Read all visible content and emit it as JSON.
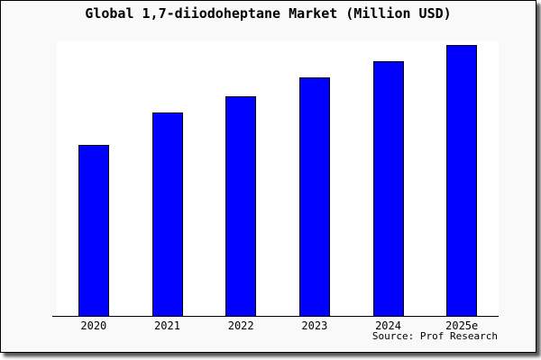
{
  "window": {
    "background_color": "#f9f9f9",
    "border_color": "#000000",
    "shadow_color": "#888888"
  },
  "chart_data": {
    "type": "bar",
    "title": "Global 1,7-diiodoheptane Market (Million USD)",
    "categories": [
      "2020",
      "2021",
      "2022",
      "2023",
      "2024",
      "2025e"
    ],
    "values": [
      63,
      75,
      81,
      88,
      94,
      100
    ],
    "note": "y-axis has no ticks or labels; values estimated as percent of tallest bar (2025e = 100) from bar heights",
    "xlabel": "",
    "ylabel": "",
    "ylim": [
      0,
      100
    ],
    "grid": false,
    "legend": false,
    "y_axis_visible": false,
    "bar_color": "#0000ff",
    "bar_border_color": "#000000",
    "plot_background": "#ffffff",
    "source_caption": "Source: Prof Research"
  }
}
